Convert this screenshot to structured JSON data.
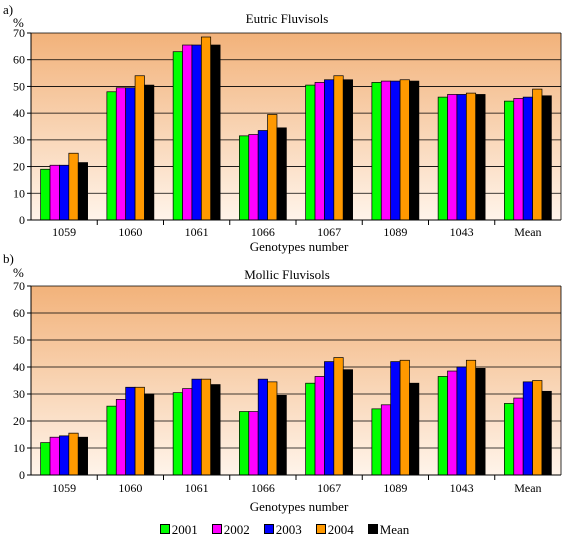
{
  "chart_data": [
    {
      "type": "bar",
      "panel_label": "a)",
      "title": "Eutric Fluvisols",
      "ylabel": "%",
      "xlabel": "Genotypes number",
      "ylim": [
        0,
        70
      ],
      "yticks": [
        "0",
        "10",
        "20",
        "30",
        "40",
        "50",
        "60",
        "70"
      ],
      "categories": [
        "1059",
        "1060",
        "1061",
        "1066",
        "1067",
        "1089",
        "1043",
        "Mean"
      ],
      "series": [
        {
          "name": "2001",
          "color": "#00ff00",
          "values": [
            19,
            48,
            63,
            31.5,
            50.5,
            51.5,
            46,
            44.5
          ]
        },
        {
          "name": "2002",
          "color": "#ff00ff",
          "values": [
            20.5,
            49.5,
            65.5,
            32,
            51.5,
            52,
            47,
            45.5
          ]
        },
        {
          "name": "2003",
          "color": "#0000ff",
          "values": [
            20.5,
            49.5,
            65.5,
            33.5,
            52.5,
            52,
            47,
            46
          ]
        },
        {
          "name": "2004",
          "color": "#ff9900",
          "values": [
            25,
            54,
            68.5,
            39.5,
            54,
            52.5,
            47.5,
            49
          ]
        },
        {
          "name": "Mean",
          "color": "#000000",
          "values": [
            21.5,
            50.5,
            65.5,
            34.5,
            52.5,
            52,
            47,
            46.5
          ]
        }
      ],
      "grid": true
    },
    {
      "type": "bar",
      "panel_label": "b)",
      "title": "Mollic Fluvisols",
      "ylabel": "%",
      "xlabel": "Genotypes number",
      "ylim": [
        0,
        70
      ],
      "yticks": [
        "0",
        "10",
        "20",
        "30",
        "40",
        "50",
        "60",
        "70"
      ],
      "categories": [
        "1059",
        "1060",
        "1061",
        "1066",
        "1067",
        "1089",
        "1043",
        "Mean"
      ],
      "series": [
        {
          "name": "2001",
          "color": "#00ff00",
          "values": [
            12,
            25.5,
            30.5,
            23.5,
            34,
            24.5,
            36.5,
            26.5
          ]
        },
        {
          "name": "2002",
          "color": "#ff00ff",
          "values": [
            14,
            28,
            32,
            23.5,
            36.5,
            26,
            38.5,
            28.5
          ]
        },
        {
          "name": "2003",
          "color": "#0000ff",
          "values": [
            14.5,
            32.5,
            35.5,
            35.5,
            42,
            42,
            40,
            34.5
          ]
        },
        {
          "name": "2004",
          "color": "#ff9900",
          "values": [
            15.5,
            32.5,
            35.5,
            34.5,
            43.5,
            42.5,
            42.5,
            35
          ]
        },
        {
          "name": "Mean",
          "color": "#000000",
          "values": [
            14,
            30,
            33.5,
            29.5,
            39,
            34,
            39.5,
            31
          ]
        }
      ],
      "grid": true
    }
  ],
  "legend": [
    {
      "label": "2001",
      "color": "#00ff00"
    },
    {
      "label": "2002",
      "color": "#ff00ff"
    },
    {
      "label": "2003",
      "color": "#0000ff"
    },
    {
      "label": "2004",
      "color": "#ff9900"
    },
    {
      "label": "Mean",
      "color": "#000000"
    }
  ],
  "colors": {
    "plot_background_top": "#f2b27a",
    "plot_background_bottom": "#fff4ea"
  }
}
